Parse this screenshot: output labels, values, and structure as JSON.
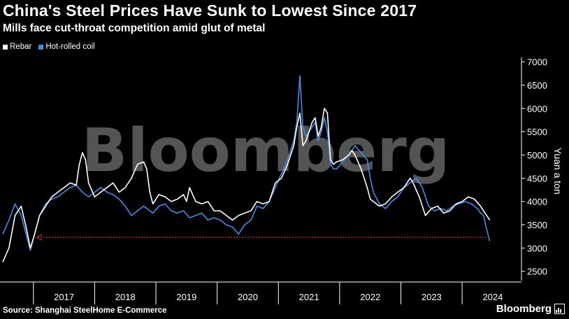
{
  "header": {
    "title": "China's Steel Prices Have Sunk to Lowest Since 2017",
    "subtitle": "Mills face cut-throat competition amid glut of metal"
  },
  "legend": [
    {
      "label": "Rebar",
      "color": "#ffffff"
    },
    {
      "label": "Hot-rolled coil",
      "color": "#3d8ee8"
    }
  ],
  "footer": {
    "source": "Source: Shanghai SteelHome E-Commerce",
    "brand": "Bloomberg"
  },
  "watermark": "Bloomberg",
  "colors": {
    "background": "#000000",
    "rebar": "#ffffff",
    "hrc": "#3d8ee8",
    "reference": "#e83030",
    "grid": "#3a3a3a"
  },
  "chart_data": {
    "type": "line",
    "title": "China's Steel Prices Have Sunk to Lowest Since 2017",
    "ylabel": "Yuan a ton",
    "xlabel": "",
    "ylim": [
      2300,
      7100
    ],
    "xlim": [
      2016.5,
      2024.9
    ],
    "yticks": [
      2500,
      3000,
      3500,
      4000,
      4500,
      5000,
      5500,
      6000,
      6500,
      7000
    ],
    "xticks": [
      "2017",
      "2018",
      "2019",
      "2020",
      "2021",
      "2022",
      "2023",
      "2024"
    ],
    "grid": false,
    "reference_line": {
      "value": 3230,
      "style": "dotted",
      "arrow": "left",
      "from": 2024.4,
      "to": 2017.05
    },
    "series": [
      {
        "name": "Rebar",
        "x": [
          2016.5,
          2016.6,
          2016.7,
          2016.8,
          2016.88,
          2016.95,
          2017.02,
          2017.1,
          2017.2,
          2017.3,
          2017.4,
          2017.5,
          2017.6,
          2017.7,
          2017.75,
          2017.8,
          2017.85,
          2017.9,
          2018.0,
          2018.1,
          2018.2,
          2018.3,
          2018.4,
          2018.5,
          2018.6,
          2018.7,
          2018.8,
          2018.85,
          2018.9,
          2018.95,
          2019.05,
          2019.15,
          2019.25,
          2019.35,
          2019.45,
          2019.5,
          2019.55,
          2019.65,
          2019.75,
          2019.85,
          2019.95,
          2020.05,
          2020.15,
          2020.25,
          2020.35,
          2020.45,
          2020.55,
          2020.65,
          2020.75,
          2020.85,
          2020.95,
          2021.05,
          2021.15,
          2021.2,
          2021.25,
          2021.3,
          2021.35,
          2021.4,
          2021.45,
          2021.5,
          2021.55,
          2021.6,
          2021.65,
          2021.7,
          2021.75,
          2021.8,
          2021.85,
          2021.9,
          2021.95,
          2022.05,
          2022.15,
          2022.2,
          2022.25,
          2022.35,
          2022.45,
          2022.5,
          2022.55,
          2022.65,
          2022.75,
          2022.85,
          2022.95,
          2023.05,
          2023.15,
          2023.2,
          2023.3,
          2023.4,
          2023.5,
          2023.6,
          2023.7,
          2023.8,
          2023.9,
          2024.0,
          2024.1,
          2024.2,
          2024.3,
          2024.35,
          2024.4,
          2024.45
        ],
        "values": [
          2700,
          3000,
          3700,
          3900,
          3450,
          3000,
          3300,
          3700,
          3900,
          4100,
          4200,
          4300,
          4400,
          4350,
          4800,
          5050,
          4900,
          4400,
          4100,
          4200,
          4300,
          4400,
          4200,
          4300,
          4500,
          4800,
          4850,
          4700,
          4200,
          3950,
          4150,
          4100,
          4000,
          4050,
          4150,
          4000,
          4300,
          4000,
          3950,
          4000,
          3800,
          3800,
          3700,
          3600,
          3700,
          3750,
          3800,
          4000,
          3950,
          4000,
          4400,
          4500,
          4800,
          5000,
          5200,
          5600,
          5900,
          5200,
          5300,
          5500,
          5700,
          5800,
          5400,
          5600,
          6000,
          5900,
          4900,
          4800,
          4850,
          4900,
          5000,
          5100,
          5000,
          4700,
          4300,
          4050,
          4000,
          3900,
          3950,
          4100,
          4200,
          4300,
          4500,
          4400,
          4100,
          3700,
          3850,
          3900,
          3750,
          3800,
          3950,
          4000,
          4100,
          4050,
          3900,
          3800,
          3700,
          3600
        ]
      },
      {
        "name": "Hot-rolled coil",
        "x": [
          2016.5,
          2016.6,
          2016.7,
          2016.8,
          2016.88,
          2016.95,
          2017.02,
          2017.1,
          2017.2,
          2017.3,
          2017.4,
          2017.5,
          2017.6,
          2017.7,
          2017.8,
          2017.9,
          2018.0,
          2018.1,
          2018.2,
          2018.3,
          2018.4,
          2018.5,
          2018.6,
          2018.7,
          2018.8,
          2018.9,
          2018.95,
          2019.05,
          2019.15,
          2019.25,
          2019.35,
          2019.45,
          2019.55,
          2019.65,
          2019.75,
          2019.85,
          2019.95,
          2020.05,
          2020.15,
          2020.25,
          2020.35,
          2020.45,
          2020.55,
          2020.65,
          2020.75,
          2020.85,
          2020.95,
          2021.05,
          2021.15,
          2021.2,
          2021.25,
          2021.3,
          2021.35,
          2021.4,
          2021.45,
          2021.5,
          2021.55,
          2021.6,
          2021.65,
          2021.7,
          2021.75,
          2021.8,
          2021.85,
          2021.9,
          2021.95,
          2022.05,
          2022.15,
          2022.25,
          2022.35,
          2022.45,
          2022.5,
          2022.55,
          2022.65,
          2022.75,
          2022.85,
          2022.95,
          2023.05,
          2023.15,
          2023.25,
          2023.35,
          2023.45,
          2023.55,
          2023.65,
          2023.75,
          2023.85,
          2023.95,
          2024.05,
          2024.15,
          2024.25,
          2024.3,
          2024.35,
          2024.4,
          2024.45
        ],
        "values": [
          3300,
          3600,
          3950,
          3700,
          3300,
          2950,
          3300,
          3700,
          3950,
          4050,
          4100,
          4200,
          4300,
          4350,
          4200,
          4100,
          4200,
          4300,
          4200,
          4150,
          4050,
          3900,
          3700,
          3800,
          3900,
          3800,
          3750,
          3900,
          3950,
          3800,
          3750,
          3800,
          3650,
          3700,
          3750,
          3600,
          3650,
          3600,
          3500,
          3450,
          3300,
          3500,
          3600,
          3900,
          3850,
          4000,
          4300,
          4600,
          4900,
          5100,
          5300,
          5700,
          6700,
          5600,
          5400,
          5500,
          5600,
          5700,
          5300,
          5500,
          5800,
          5500,
          4800,
          4700,
          4700,
          4850,
          5000,
          5200,
          5050,
          4900,
          4500,
          4200,
          3950,
          3850,
          4000,
          4100,
          4300,
          4400,
          4500,
          4300,
          3900,
          3800,
          3850,
          3800,
          3900,
          3950,
          4000,
          3950,
          3850,
          3750,
          3700,
          3400,
          3150
        ]
      }
    ]
  }
}
